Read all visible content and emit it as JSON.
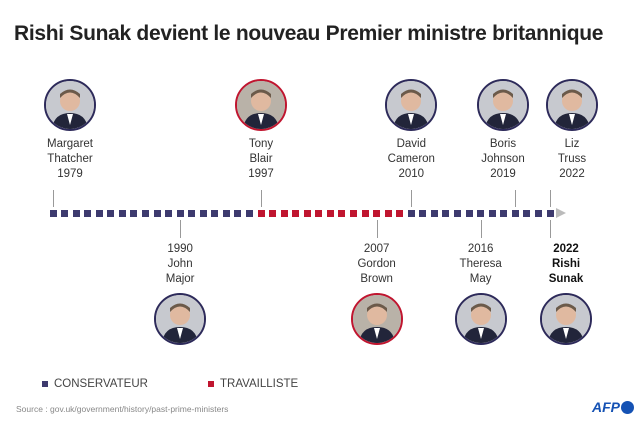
{
  "title": "Rishi Sunak devient le nouveau Premier ministre britannique",
  "timeline": {
    "start_year": 1979,
    "end_year": 2022,
    "labour_years": [
      1997,
      2009
    ]
  },
  "colors": {
    "conservative": "#3d3a6e",
    "labour": "#c0152f",
    "arrow": "#bbbbbb"
  },
  "prime_ministers": [
    {
      "first": "Margaret",
      "last": "Thatcher",
      "year": "1979",
      "party": "conservative",
      "side": "above"
    },
    {
      "first": "John",
      "last": "Major",
      "year": "1990",
      "party": "conservative",
      "side": "below"
    },
    {
      "first": "Tony",
      "last": "Blair",
      "year": "1997",
      "party": "labour",
      "side": "above"
    },
    {
      "first": "Gordon",
      "last": "Brown",
      "year": "2007",
      "party": "labour",
      "side": "below"
    },
    {
      "first": "David",
      "last": "Cameron",
      "year": "2010",
      "party": "conservative",
      "side": "above"
    },
    {
      "first": "Theresa",
      "last": "May",
      "year": "2016",
      "party": "conservative",
      "side": "below"
    },
    {
      "first": "Boris",
      "last": "Johnson",
      "year": "2019",
      "party": "conservative",
      "side": "above"
    },
    {
      "first": "Liz",
      "last": "Truss",
      "year": "2022",
      "party": "conservative",
      "side": "above"
    },
    {
      "first": "Rishi",
      "last": "Sunak",
      "year": "2022",
      "party": "conservative",
      "side": "below",
      "highlight": true
    }
  ],
  "legend": {
    "conservative": "CONSERVATEUR",
    "labour": "TRAVAILLISTE"
  },
  "source": "Source : gov.uk/government/history/past-prime-ministers",
  "logo": "AFP"
}
